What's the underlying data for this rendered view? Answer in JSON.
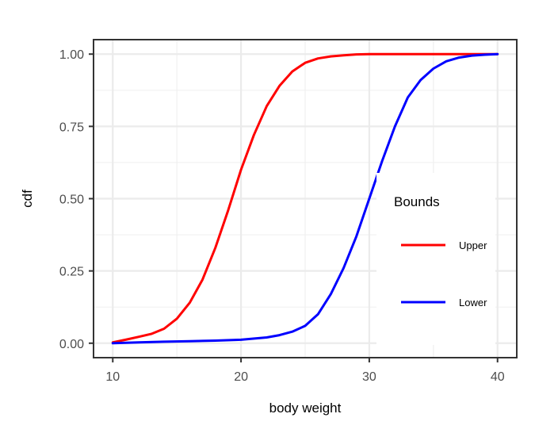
{
  "chart_data": {
    "type": "line",
    "title": "",
    "xlabel": "body weight",
    "ylabel": "cdf",
    "xlim": [
      8.5,
      41.5
    ],
    "ylim": [
      -0.05,
      1.05
    ],
    "x_ticks": [
      10,
      20,
      30,
      40
    ],
    "x_tick_labels": [
      "10",
      "20",
      "30",
      "40"
    ],
    "y_ticks": [
      0,
      0.25,
      0.5,
      0.75,
      1
    ],
    "y_tick_labels": [
      "0.00",
      "0.25",
      "0.50",
      "0.75",
      "1.00"
    ],
    "grid": true,
    "legend": {
      "title": "Bounds",
      "position": "right"
    },
    "series": [
      {
        "name": "Upper",
        "color": "#ff0000",
        "x": [
          10,
          11,
          12,
          13,
          14,
          15,
          16,
          17,
          18,
          19,
          20,
          21,
          22,
          23,
          24,
          25,
          26,
          27,
          28,
          29,
          30,
          32,
          35,
          40
        ],
        "y": [
          0.003,
          0.012,
          0.022,
          0.032,
          0.05,
          0.085,
          0.14,
          0.22,
          0.33,
          0.46,
          0.6,
          0.72,
          0.82,
          0.89,
          0.94,
          0.97,
          0.985,
          0.992,
          0.996,
          0.999,
          1.0,
          1.0,
          1.0,
          1.0
        ]
      },
      {
        "name": "Lower",
        "color": "#0000ff",
        "x": [
          10,
          12,
          14,
          16,
          18,
          20,
          22,
          23,
          24,
          25,
          26,
          27,
          28,
          29,
          30,
          31,
          32,
          33,
          34,
          35,
          36,
          37,
          38,
          39,
          40
        ],
        "y": [
          0.0,
          0.003,
          0.005,
          0.007,
          0.009,
          0.012,
          0.02,
          0.028,
          0.04,
          0.06,
          0.1,
          0.17,
          0.26,
          0.37,
          0.5,
          0.63,
          0.75,
          0.85,
          0.91,
          0.95,
          0.975,
          0.988,
          0.995,
          0.998,
          1.0
        ]
      }
    ]
  }
}
